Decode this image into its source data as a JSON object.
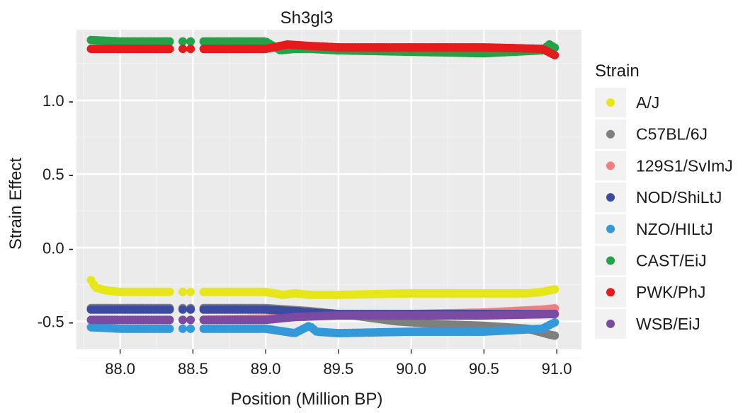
{
  "chart_data": {
    "type": "scatter",
    "title": "Sh3gl3",
    "xlabel": "Position (Million BP)",
    "ylabel": "Strain Effect",
    "xlim": [
      87.7,
      91.17
    ],
    "ylim": [
      -0.69,
      1.48
    ],
    "xticks": [
      88.0,
      88.5,
      89.0,
      89.5,
      90.0,
      90.5,
      91.0
    ],
    "xtick_labels": [
      "88.0",
      "88.5",
      "89.0",
      "89.5",
      "90.0",
      "90.5",
      "91.0"
    ],
    "yticks": [
      1.0,
      0.5,
      0.0,
      -0.5
    ],
    "ytick_labels": [
      "1.0 -",
      "0.5 -",
      "0.0 -",
      "-0.5 -"
    ],
    "grid": true,
    "background": "#ebebeb",
    "gaps": [
      [
        88.35,
        88.42
      ],
      [
        88.44,
        88.47
      ],
      [
        88.5,
        88.57
      ]
    ],
    "legend": {
      "title": "Strain",
      "position": "right"
    },
    "series": [
      {
        "name": "A/J",
        "color": "#e6e619",
        "x": [
          87.8,
          87.83,
          87.9,
          88.0,
          88.5,
          89.0,
          89.12,
          89.2,
          89.3,
          89.5,
          90.0,
          90.5,
          90.8,
          90.9,
          91.0
        ],
        "y": [
          -0.22,
          -0.27,
          -0.29,
          -0.3,
          -0.3,
          -0.3,
          -0.32,
          -0.31,
          -0.32,
          -0.32,
          -0.31,
          -0.31,
          -0.31,
          -0.3,
          -0.28
        ]
      },
      {
        "name": "C57BL/6J",
        "color": "#7f7f7f",
        "x": [
          87.8,
          88.0,
          88.5,
          89.0,
          89.3,
          89.6,
          89.9,
          90.2,
          90.5,
          90.8,
          90.95,
          91.0
        ],
        "y": [
          -0.41,
          -0.41,
          -0.41,
          -0.41,
          -0.43,
          -0.46,
          -0.5,
          -0.52,
          -0.53,
          -0.55,
          -0.59,
          -0.6
        ]
      },
      {
        "name": "129S1/SvImJ",
        "color": "#f08080",
        "x": [
          87.8,
          88.5,
          89.0,
          89.5,
          90.0,
          90.5,
          90.9,
          91.0
        ],
        "y": [
          -0.49,
          -0.49,
          -0.48,
          -0.46,
          -0.45,
          -0.44,
          -0.42,
          -0.41
        ]
      },
      {
        "name": "NOD/ShiLtJ",
        "color": "#3c4ba0",
        "x": [
          87.8,
          88.0,
          88.5,
          89.0,
          89.2,
          89.3,
          89.5,
          90.0,
          90.5,
          91.0
        ],
        "y": [
          -0.42,
          -0.42,
          -0.42,
          -0.42,
          -0.43,
          -0.44,
          -0.45,
          -0.45,
          -0.45,
          -0.45
        ]
      },
      {
        "name": "NZO/HILtJ",
        "color": "#3399d9",
        "x": [
          87.8,
          88.0,
          88.5,
          89.0,
          89.2,
          89.3,
          89.35,
          89.5,
          90.0,
          90.5,
          90.9,
          91.0
        ],
        "y": [
          -0.54,
          -0.55,
          -0.55,
          -0.55,
          -0.58,
          -0.53,
          -0.57,
          -0.58,
          -0.57,
          -0.57,
          -0.55,
          -0.5
        ]
      },
      {
        "name": "CAST/EiJ",
        "color": "#22a348",
        "x": [
          87.8,
          88.0,
          88.5,
          89.0,
          89.1,
          89.2,
          89.3,
          89.5,
          90.0,
          90.5,
          90.9,
          90.95,
          91.0
        ],
        "y": [
          1.41,
          1.4,
          1.4,
          1.4,
          1.34,
          1.35,
          1.35,
          1.34,
          1.33,
          1.32,
          1.34,
          1.38,
          1.35
        ]
      },
      {
        "name": "PWK/PhJ",
        "color": "#e41a1c",
        "x": [
          87.8,
          88.0,
          88.5,
          89.0,
          89.15,
          89.3,
          89.5,
          90.0,
          90.5,
          90.9,
          91.0
        ],
        "y": [
          1.35,
          1.35,
          1.35,
          1.35,
          1.38,
          1.37,
          1.36,
          1.36,
          1.36,
          1.35,
          1.3
        ]
      },
      {
        "name": "WSB/EiJ",
        "color": "#7b4aa3",
        "x": [
          87.8,
          88.0,
          88.5,
          89.0,
          89.2,
          89.5,
          90.0,
          90.5,
          91.0
        ],
        "y": [
          -0.49,
          -0.49,
          -0.49,
          -0.49,
          -0.47,
          -0.46,
          -0.46,
          -0.46,
          -0.45
        ]
      }
    ]
  }
}
